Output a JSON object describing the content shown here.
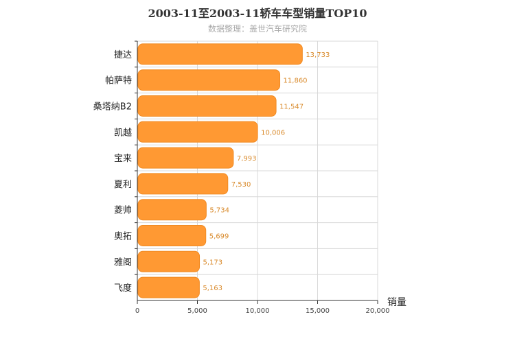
{
  "chart_data": {
    "type": "bar",
    "orientation": "horizontal",
    "title": "2003-11至2003-11轿车车型销量TOP10",
    "subtitle": "数据整理：盖世汽车研究院",
    "categories": [
      "捷达",
      "帕萨特",
      "桑塔纳B2",
      "凯越",
      "宝来",
      "夏利",
      "菱帅",
      "奥拓",
      "雅阁",
      "飞度"
    ],
    "values": [
      13733,
      11860,
      11547,
      10006,
      7993,
      7530,
      5734,
      5699,
      5173,
      5163
    ],
    "value_labels": [
      "13,733",
      "11,860",
      "11,547",
      "10,006",
      "7,993",
      "7,530",
      "5,734",
      "5,699",
      "5,173",
      "5,163"
    ],
    "xlabel": "销量",
    "xlim": [
      0,
      20000
    ],
    "xticks": [
      0,
      5000,
      10000,
      15000,
      20000
    ],
    "xtick_labels": [
      "0",
      "5,000",
      "10,000",
      "15,000",
      "20,000"
    ],
    "grid": true,
    "colors": {
      "bar": "#ff9933",
      "bar_stroke": "#f08a22",
      "data_label": "#d98a2b",
      "grid": "#d8d8d8",
      "axis": "#333333"
    }
  }
}
